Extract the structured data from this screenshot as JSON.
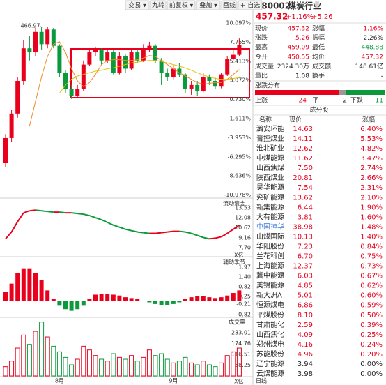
{
  "toolbar": [
    "交易 ▾",
    "九转",
    "前复权 ▾",
    "叠加 ▾",
    "画线",
    "+ 自选"
  ],
  "chart_data": [
    {
      "type": "candlestick",
      "max_label": "466.97",
      "period": "日线",
      "up_color": "#e8001c",
      "down_color": "#0a9a3c",
      "categories": [
        null,
        null,
        null,
        null,
        null,
        null,
        null,
        null,
        null,
        "8月",
        null,
        null,
        null,
        null,
        null,
        null,
        null,
        null,
        null,
        null,
        null,
        null,
        null,
        null,
        null,
        null,
        null,
        null,
        "9月",
        null,
        null,
        null,
        null,
        null,
        null,
        null,
        null,
        null,
        null,
        null
      ],
      "ylim": [
        -11.18,
        10.52
      ],
      "yticks": [
        {
          "value": 10.097,
          "label": "10.097%"
        },
        {
          "value": 7.755,
          "label": "7.755%"
        },
        {
          "value": 5.413,
          "label": "5.413%"
        },
        {
          "value": 3.072,
          "label": "3.072%"
        },
        {
          "value": 0.73,
          "label": "0.730%"
        },
        {
          "value": -1.611,
          "label": "-1.611%"
        },
        {
          "value": -3.953,
          "label": "-3.953%"
        },
        {
          "value": -6.295,
          "label": "-6.295%"
        },
        {
          "value": -8.636,
          "label": "-8.636%"
        },
        {
          "value": -10.978,
          "label": "-10.978%"
        }
      ],
      "open": [
        -7,
        -4,
        -1,
        3,
        7,
        6.5,
        9,
        7.5,
        9.3,
        7.3,
        4,
        2,
        1.2,
        2,
        5,
        6.5,
        6.8,
        5.5,
        6.5,
        4,
        6,
        4.5,
        6.5,
        5.5,
        6.8,
        7.3,
        5.5,
        4,
        3.5,
        4.5,
        3.8,
        2,
        2.5,
        1.8,
        3.5,
        3,
        2.3,
        3.8,
        5.7,
        6.2
      ],
      "high": [
        -3.5,
        -0.5,
        3.5,
        8,
        8.5,
        9.5,
        9.6,
        9.6,
        9.5,
        7.5,
        4.3,
        2.5,
        2.5,
        5.5,
        7,
        7.2,
        7,
        7,
        6.8,
        6.5,
        6.3,
        7,
        6.8,
        7.5,
        7.8,
        7.5,
        5.8,
        4.5,
        5,
        5.2,
        4,
        3,
        3,
        4,
        3.8,
        3.4,
        4,
        6,
        6.8,
        8.2
      ],
      "low": [
        -7.5,
        -4.5,
        -1.5,
        2.5,
        5.5,
        6,
        6.8,
        7,
        7,
        3.5,
        1.5,
        0.8,
        0.9,
        1.8,
        4.8,
        6,
        5,
        5.2,
        3.8,
        3.8,
        4,
        4.3,
        5.2,
        5.3,
        6.5,
        5.2,
        2.5,
        3,
        3.2,
        3.5,
        1.5,
        1.3,
        1.2,
        1.6,
        2.5,
        2,
        2.1,
        3.6,
        5.5,
        6
      ],
      "close": [
        -4,
        -1,
        3,
        7,
        6.5,
        9,
        7.5,
        9.3,
        7.3,
        4,
        2,
        1.2,
        2,
        5,
        6.5,
        6.8,
        5.5,
        6.5,
        4,
        6,
        4.5,
        6.5,
        5.5,
        6.8,
        7.3,
        5.5,
        4,
        3.5,
        4.5,
        3.8,
        2,
        2.5,
        1.8,
        3.5,
        3,
        2.3,
        3.8,
        5.7,
        6.2,
        7.4
      ],
      "series": [
        {
          "color": "#f08a24",
          "values": [
            null,
            null,
            null,
            null,
            -2.5,
            0.5,
            3.5,
            6,
            7.5,
            7.8,
            6.5,
            4.5,
            3,
            2.3,
            2.8,
            3.8,
            5,
            5.5,
            5.6,
            5.6,
            5.5,
            5.5,
            5.6,
            5.8,
            6.1,
            6,
            5.5,
            5,
            4.5,
            4,
            3.6,
            3.2,
            2.8,
            2.6,
            2.7,
            2.8,
            2.8,
            3.2,
            3.8,
            4.4
          ]
        },
        {
          "color": "#e8c000",
          "values": [
            null,
            null,
            null,
            null,
            null,
            null,
            null,
            null,
            null,
            1.5,
            2.5,
            3.2,
            3.6,
            3.8,
            4,
            4.2,
            4.3,
            4.5,
            4.6,
            4.8,
            5,
            5.2,
            5.3,
            5.4,
            5.5,
            5.5,
            5.4,
            5.2,
            5,
            4.8,
            4.6,
            4.3,
            4,
            3.7,
            3.5,
            3.3,
            3.2,
            3.2,
            3.3,
            3.4
          ]
        }
      ]
    },
    {
      "type": "line",
      "title": "流动资金",
      "unit": "X亿",
      "ylim": [
        7.0,
        14.55
      ],
      "yticks": [
        13.53,
        12.08,
        10.62,
        9.16,
        {
          "value": 7.7,
          "label": "7.70"
        }
      ],
      "values": [
        9,
        10,
        11.5,
        12.8,
        13.1,
        13.2,
        13.1,
        13,
        12.9,
        12.9,
        12.8,
        12.8,
        12.7,
        12.6,
        12.4,
        12.1,
        11.8,
        11.4,
        11,
        10.7,
        10.4,
        10.2,
        10,
        9.9,
        9.8,
        9.8,
        9.9,
        10,
        10.1,
        10.1,
        10,
        9.8,
        9.5,
        9.2,
        9,
        9.1,
        9.3,
        9.8,
        10.4,
        11
      ]
    },
    {
      "type": "bar",
      "title": "辅助季节",
      "ylim": [
        -0.86,
        2.42
      ],
      "yticks": [
        1.97,
        {
          "value": 1.4,
          "label": "1.40"
        },
        0.82,
        0.25,
        -0.21,
        -0.82
      ],
      "values": [
        0.5,
        1,
        1.6,
        1.9,
        1.9,
        1.6,
        1.2,
        0.6,
        0.1,
        -0.3,
        -0.5,
        -0.6,
        -0.5,
        -0.3,
        0.1,
        0.35,
        0.4,
        0.4,
        0.35,
        0.3,
        0.2,
        0.15,
        0.1,
        0,
        -0.1,
        -0.2,
        -0.25,
        -0.25,
        -0.2,
        -0.1,
        0.1,
        0.2,
        0.25,
        0.25,
        0.2,
        0.15,
        0.2,
        0.3,
        0.45,
        0.6
      ]
    },
    {
      "type": "volume",
      "title": "成交量",
      "unit": "X亿",
      "ylim": [
        0,
        304
      ],
      "yticks": [
        233.01,
        174.76,
        116.51,
        58.25
      ],
      "values": [
        50,
        80,
        150,
        220,
        170,
        240,
        290,
        210,
        160,
        130,
        100,
        60,
        90,
        160,
        140,
        110,
        90,
        80,
        120,
        100,
        90,
        110,
        80,
        100,
        140,
        110,
        120,
        90,
        70,
        80,
        100,
        70,
        60,
        80,
        60,
        50,
        70,
        110,
        130,
        150
      ]
    }
  ],
  "quote": {
    "code": "880002",
    "name": "煤炭行业",
    "price": "457.32",
    "pct": "+1.16%",
    "change": "+5.26"
  },
  "stats": [
    {
      "label": "现价",
      "value": "457.32",
      "color": "#e8001c"
    },
    {
      "label": "涨幅",
      "value": "1.16%",
      "color": "#e8001c"
    },
    {
      "label": "涨跌",
      "value": "5.26",
      "color": "#e8001c"
    },
    {
      "label": "振幅",
      "value": "2.26%",
      "color": "#222222"
    },
    {
      "label": "最高",
      "value": "459.09",
      "color": "#e8001c"
    },
    {
      "label": "最低",
      "value": "448.88",
      "color": "#0a9a3c"
    },
    {
      "label": "今开",
      "value": "450.55",
      "color": "#e8001c"
    },
    {
      "label": "均价",
      "value": "457.32",
      "color": "#e8001c"
    },
    {
      "label": "成交量",
      "value": "2324.30万",
      "color": "#222222"
    },
    {
      "label": "成交额",
      "value": "148.61亿",
      "color": "#222222"
    },
    {
      "label": "量比",
      "value": "1.08",
      "color": "#222222"
    },
    {
      "label": "换手",
      "value": "-",
      "color": "#222222"
    }
  ],
  "distribution": {
    "title": "涨跌分布",
    "up_label": "上涨",
    "up": 24,
    "flat_label": "平",
    "flat": 2,
    "down_label": "下跌",
    "down": 11
  },
  "constituents": {
    "title": "成分股",
    "columns": [
      "名称",
      "现价",
      "涨幅"
    ],
    "rows": [
      {
        "name": "潞安环能",
        "price": "14.63",
        "change": "6.40%",
        "color": "#e8001c"
      },
      {
        "name": "晋控煤业",
        "price": "14.11",
        "change": "5.53%",
        "color": "#e8001c"
      },
      {
        "name": "淮北矿业",
        "price": "12.62",
        "change": "4.82%",
        "color": "#e8001c"
      },
      {
        "name": "中煤能源",
        "price": "11.62",
        "change": "3.47%",
        "color": "#e8001c"
      },
      {
        "name": "山西焦煤",
        "price": "7.50",
        "change": "2.74%",
        "color": "#e8001c"
      },
      {
        "name": "陕西煤业",
        "price": "20.81",
        "change": "2.66%",
        "color": "#e8001c"
      },
      {
        "name": "昊华能源",
        "price": "7.54",
        "change": "2.31%",
        "color": "#e8001c"
      },
      {
        "name": "兖矿能源",
        "price": "13.62",
        "change": "2.10%",
        "color": "#e8001c"
      },
      {
        "name": "新集能源",
        "price": "6.44",
        "change": "1.90%",
        "color": "#e8001c"
      },
      {
        "name": "大有能源",
        "price": "3.81",
        "change": "1.60%",
        "color": "#e8001c"
      },
      {
        "name": "中国神华",
        "price": "38.98",
        "change": "1.48%",
        "color": "#e8001c",
        "name_color": "#3a78d8"
      },
      {
        "name": "山煤国际",
        "price": "10.13",
        "change": "1.40%",
        "color": "#e8001c"
      },
      {
        "name": "华阳股份",
        "price": "7.23",
        "change": "0.84%",
        "color": "#e8001c"
      },
      {
        "name": "兰花科创",
        "price": "6.70",
        "change": "0.75%",
        "color": "#e8001c"
      },
      {
        "name": "上海能源",
        "price": "12.37",
        "change": "0.73%",
        "color": "#e8001c"
      },
      {
        "name": "冀中能源",
        "price": "6.03",
        "change": "0.67%",
        "color": "#e8001c"
      },
      {
        "name": "美锦能源",
        "price": "4.85",
        "change": "0.62%",
        "color": "#e8001c"
      },
      {
        "name": "新大洲A",
        "price": "5.01",
        "change": "0.60%",
        "color": "#e8001c"
      },
      {
        "name": "恒源煤电",
        "price": "6.86",
        "change": "0.59%",
        "color": "#e8001c"
      },
      {
        "name": "平煤股份",
        "price": "8.10",
        "change": "0.50%",
        "color": "#e8001c"
      },
      {
        "name": "甘肃能化",
        "price": "2.59",
        "change": "0.39%",
        "color": "#e8001c"
      },
      {
        "name": "山西焦化",
        "price": "4.09",
        "change": "0.25%",
        "color": "#e8001c"
      },
      {
        "name": "郑州煤电",
        "price": "4.16",
        "change": "0.24%",
        "color": "#e8001c"
      },
      {
        "name": "苏能股份",
        "price": "4.96",
        "change": "0.20%",
        "color": "#e8001c"
      },
      {
        "name": "辽宁能源",
        "price": "3.94",
        "change": "0.00%",
        "color": "#222222"
      },
      {
        "name": "云煤能源",
        "price": "3.98",
        "change": "0.00%",
        "color": "#222222"
      }
    ]
  }
}
